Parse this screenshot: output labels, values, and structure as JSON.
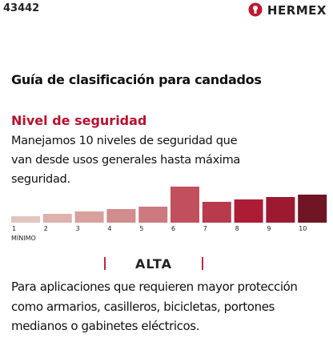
{
  "header": {
    "code": "43442",
    "brand": "HERMEX"
  },
  "title": "Guía de clasificación para candados",
  "section": {
    "heading": "Nivel de seguridad",
    "text": "Manejamos 10 niveles de seguridad que van desde usos generales hasta máxima seguridad."
  },
  "scale": {
    "levels": [
      "1",
      "2",
      "3",
      "4",
      "5",
      "6",
      "7",
      "8",
      "9",
      "10"
    ],
    "colors": [
      "#e3c4bf",
      "#ddb2ac",
      "#d8a19d",
      "#d18c8d",
      "#cb7a7f",
      "#c24f5c",
      "#b83a4c",
      "#ad1c35",
      "#9c1a30",
      "#6f1523"
    ],
    "selected": "6",
    "min_label": "MÍNIMO"
  },
  "rating": {
    "label": "ALTA",
    "description": "Para aplicaciones que requieren mayor protección como armarios, casilleros, bicicletas, portones medianos o gabinetes eléctricos."
  }
}
